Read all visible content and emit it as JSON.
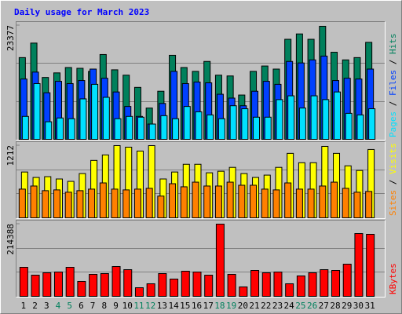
{
  "chart_data": [
    {
      "type": "bar",
      "title": "Daily usage for March 2023",
      "ylim": [
        0,
        23377
      ],
      "yticks": [
        23377
      ],
      "series": [
        {
          "name": "Hits",
          "color": "#00805c",
          "values": [
            16790,
            19770,
            12710,
            13650,
            14750,
            14590,
            13960,
            17420,
            14280,
            13180,
            10670,
            6430,
            9880,
            17260,
            14750,
            13960,
            16000,
            13180,
            13020,
            9100,
            13960,
            15060,
            14430,
            20550,
            21650,
            20550,
            23220,
            17890,
            16320,
            16790,
            19920
          ]
        },
        {
          "name": "Files",
          "color": "#0040ff",
          "values": [
            12390,
            13810,
            9570,
            11920,
            11450,
            12080,
            14430,
            12550,
            9730,
            6750,
            4710,
            3140,
            7370,
            13960,
            11450,
            11770,
            11610,
            9260,
            8470,
            6900,
            9880,
            11920,
            11300,
            16000,
            15690,
            16320,
            17100,
            12080,
            12550,
            12390,
            14430
          ]
        },
        {
          "name": "Pages",
          "color": "#00e0ff",
          "values": [
            4710,
            11450,
            3610,
            4390,
            4240,
            8310,
            11300,
            8630,
            4240,
            4710,
            4550,
            3140,
            4860,
            4240,
            6750,
            5650,
            5020,
            4240,
            6900,
            6280,
            4550,
            4550,
            8160,
            8940,
            6430,
            8940,
            8160,
            9730,
            5340,
            5020,
            6280
          ]
        }
      ]
    },
    {
      "type": "bar",
      "ylim": [
        0,
        1212
      ],
      "yticks": [
        1212
      ],
      "series": [
        {
          "name": "Visits",
          "color": "#ffff00",
          "values": [
            769,
            678,
            691,
            652,
            612,
            743,
            964,
            1056,
            1212,
            1186,
            1121,
            1212,
            652,
            769,
            899,
            899,
            756,
            782,
            847,
            743,
            678,
            717,
            847,
            1082,
            925,
            925,
            1199,
            1082,
            873,
            795,
            1147
          ]
        },
        {
          "name": "Sites",
          "color": "#ff8000",
          "values": [
            482,
            534,
            456,
            469,
            430,
            456,
            482,
            586,
            482,
            469,
            482,
            495,
            365,
            573,
            521,
            599,
            534,
            534,
            599,
            547,
            547,
            482,
            469,
            586,
            482,
            482,
            534,
            599,
            495,
            430,
            443
          ]
        }
      ]
    },
    {
      "type": "bar",
      "ylim": [
        0,
        214388
      ],
      "yticks": [
        214388
      ],
      "categories": [
        "1",
        "2",
        "3",
        "4",
        "5",
        "6",
        "7",
        "8",
        "9",
        "10",
        "11",
        "12",
        "13",
        "14",
        "15",
        "16",
        "17",
        "18",
        "19",
        "20",
        "21",
        "22",
        "23",
        "24",
        "25",
        "26",
        "27",
        "28",
        "29",
        "30",
        "31"
      ],
      "category_colors": [
        "#000000",
        "#000000",
        "#000000",
        "#00805c",
        "#00805c",
        "#000000",
        "#000000",
        "#000000",
        "#000000",
        "#000000",
        "#00805c",
        "#00805c",
        "#000000",
        "#000000",
        "#000000",
        "#000000",
        "#000000",
        "#00805c",
        "#00805c",
        "#000000",
        "#000000",
        "#000000",
        "#000000",
        "#000000",
        "#00805c",
        "#00805c",
        "#000000",
        "#000000",
        "#000000",
        "#000000",
        "#000000"
      ],
      "series": [
        {
          "name": "KBytes",
          "color": "#ff0000",
          "values": [
            86200,
            62900,
            69900,
            72200,
            86200,
            44300,
            65200,
            67600,
            88500,
            79200,
            25600,
            37300,
            67600,
            51300,
            74600,
            72200,
            62900,
            214388,
            65200,
            28000,
            76900,
            69900,
            72200,
            37300,
            60600,
            69900,
            79200,
            76900,
            95500,
            186400,
            184100
          ]
        }
      ]
    }
  ]
}
